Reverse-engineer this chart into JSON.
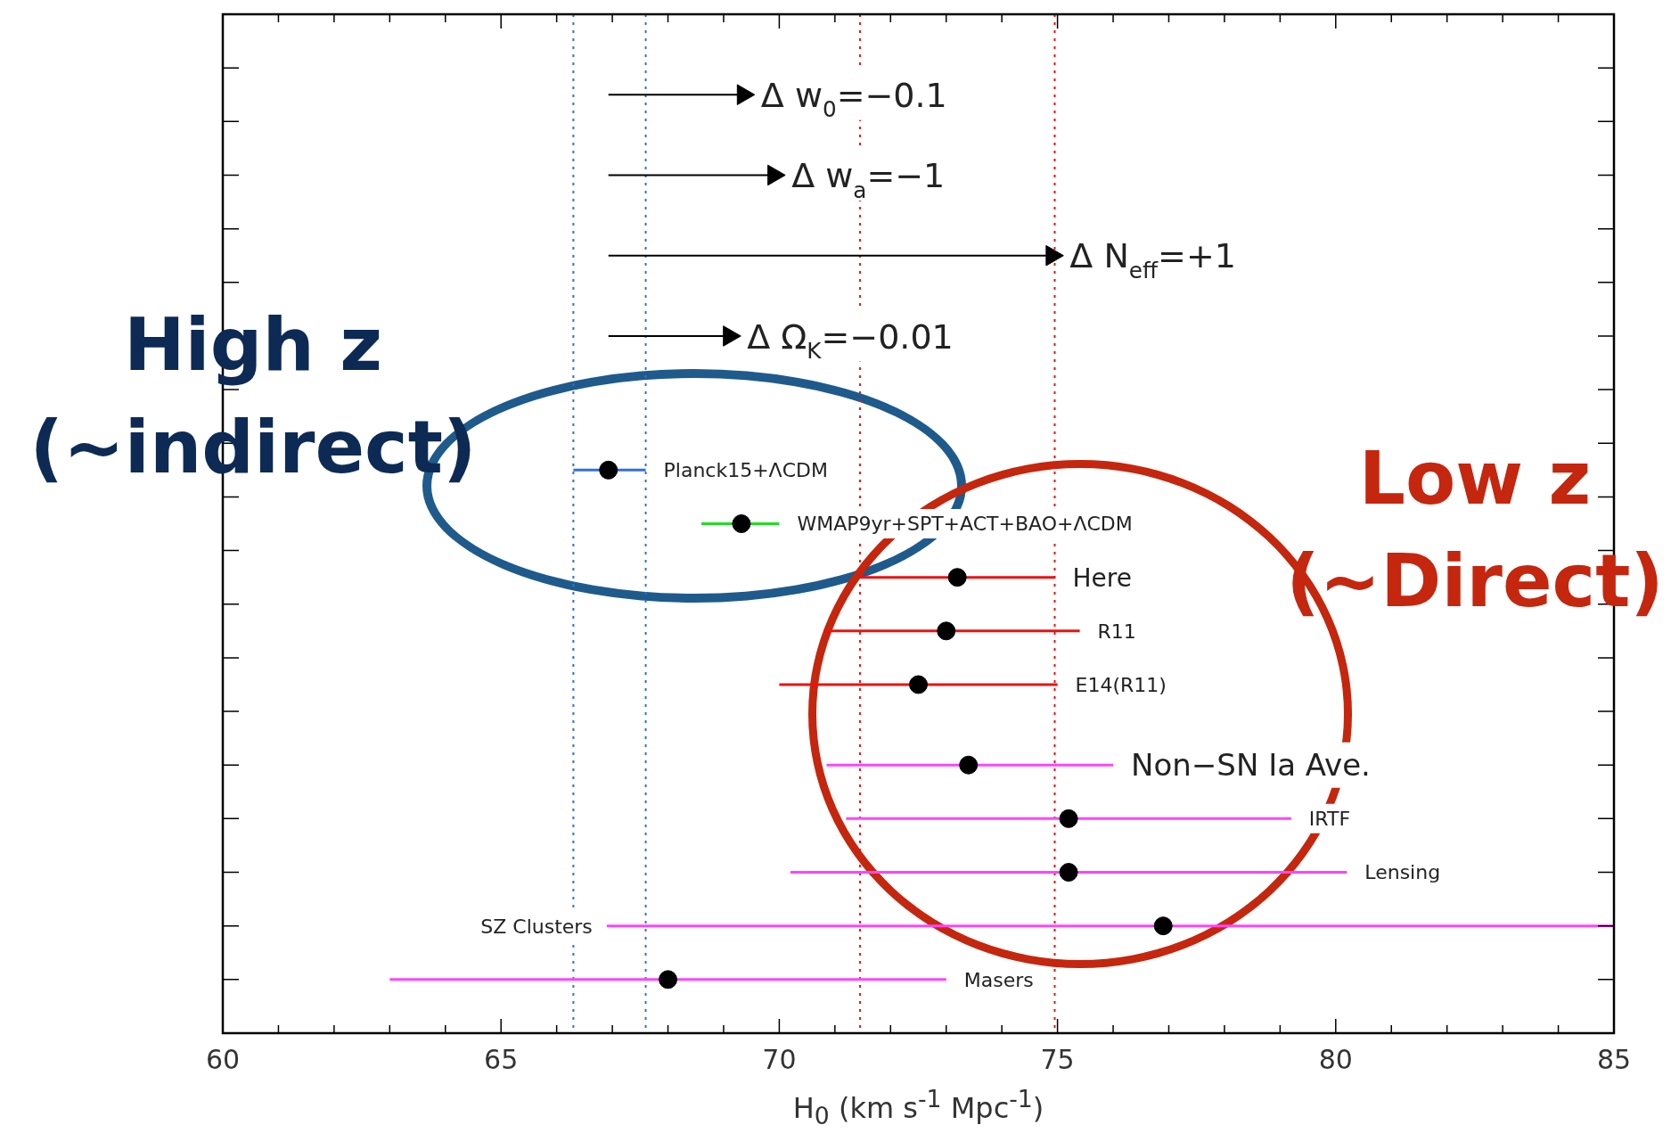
{
  "chart_data": {
    "type": "scatter",
    "orientation": "horizontal",
    "xlabel": "H$_{0}$ (km s$^{-1}$ Mpc$^{-1}$)",
    "categories": [
      null,
      null,
      null,
      "Δ w$_{0}$=−0.1",
      null,
      null,
      "Δ w$_{a}$=−1",
      null,
      null,
      "Δ N$_{eff}$=+1",
      null,
      null,
      "Δ Ω$_{K}$=−0.01",
      null,
      null,
      null,
      null,
      "Planck15+ΛCDM",
      null,
      "WMAP9yr+SPT+ACT+BAO+ΛCDM",
      null,
      "Here",
      null,
      "R11",
      null,
      "E14(R11)",
      null,
      null,
      "Non−SN Ia Ave.",
      null,
      "IRTF",
      null,
      "Lensing",
      null,
      "SZ Clusters",
      null,
      "Masers",
      null,
      null
    ],
    "xlim": [
      60,
      85
    ],
    "xticks": [
      60,
      {
        "value": 61,
        "label": null
      },
      {
        "value": 62,
        "label": null
      },
      {
        "value": 63,
        "label": null
      },
      {
        "value": 64,
        "label": null
      },
      65,
      {
        "value": 66,
        "label": null
      },
      {
        "value": 67,
        "label": null
      },
      {
        "value": 68,
        "label": null
      },
      {
        "value": 69,
        "label": null
      },
      70,
      {
        "value": 71,
        "label": null
      },
      {
        "value": 72,
        "label": null
      },
      {
        "value": 73,
        "label": null
      },
      {
        "value": 74,
        "label": null
      },
      75,
      {
        "value": 76,
        "label": null
      },
      {
        "value": 77,
        "label": null
      },
      {
        "value": 78,
        "label": null
      },
      {
        "value": 79,
        "label": null
      },
      80,
      {
        "value": 81,
        "label": null
      },
      {
        "value": 82,
        "label": null
      },
      {
        "value": 83,
        "label": null
      },
      {
        "value": 84,
        "label": null
      },
      85
    ],
    "grid": false,
    "legend": false,
    "series": [
      {
        "color": "#000000",
        "marker": "triangle",
        "values": [
          null,
          null,
          null,
          69.35,
          null,
          null,
          69.9,
          null,
          null,
          74.9,
          null,
          null,
          69.1,
          null,
          null,
          null,
          null,
          null,
          null,
          null,
          null,
          null,
          null,
          null,
          null,
          null,
          null,
          null,
          null,
          null,
          null,
          null,
          null,
          null,
          null,
          null,
          null,
          null,
          null
        ],
        "errors": [
          null,
          null,
          null,
          [
            66.93,
            69.35
          ],
          null,
          null,
          [
            66.93,
            69.9
          ],
          null,
          null,
          [
            66.93,
            74.9
          ],
          null,
          null,
          [
            66.93,
            69.1
          ],
          null,
          null,
          null,
          null,
          null,
          null,
          null,
          null,
          null,
          null,
          null,
          null,
          null,
          null,
          null,
          null,
          null,
          null,
          null,
          null,
          null,
          null,
          null,
          null,
          null,
          null
        ]
      },
      {
        "color": "#2f6fe0",
        "marker": "circle",
        "colors": [
          null,
          null,
          null,
          null,
          null,
          null,
          null,
          null,
          null,
          null,
          null,
          null,
          null,
          null,
          null,
          null,
          null,
          "#000000",
          null,
          null,
          null,
          null,
          null,
          null,
          null,
          null,
          null,
          null,
          null,
          null,
          null,
          null,
          null,
          null,
          null,
          null,
          null,
          null,
          null
        ],
        "values": [
          null,
          null,
          null,
          null,
          null,
          null,
          null,
          null,
          null,
          null,
          null,
          null,
          null,
          null,
          null,
          null,
          null,
          66.93,
          null,
          null,
          null,
          null,
          null,
          null,
          null,
          null,
          null,
          null,
          null,
          null,
          null,
          null,
          null,
          null,
          null,
          null,
          null,
          null,
          null
        ],
        "errors": [
          null,
          null,
          null,
          null,
          null,
          null,
          null,
          null,
          null,
          null,
          null,
          null,
          null,
          null,
          null,
          null,
          null,
          [
            66.3,
            67.6
          ],
          null,
          null,
          null,
          null,
          null,
          null,
          null,
          null,
          null,
          null,
          null,
          null,
          null,
          null,
          null,
          null,
          null,
          null,
          null,
          null,
          null
        ]
      },
      {
        "color": "#22dd22",
        "marker": "circle",
        "colors": [
          null,
          null,
          null,
          null,
          null,
          null,
          null,
          null,
          null,
          null,
          null,
          null,
          null,
          null,
          null,
          null,
          null,
          null,
          null,
          "#000000",
          null,
          null,
          null,
          null,
          null,
          null,
          null,
          null,
          null,
          null,
          null,
          null,
          null,
          null,
          null,
          null,
          null,
          null,
          null
        ],
        "values": [
          null,
          null,
          null,
          null,
          null,
          null,
          null,
          null,
          null,
          null,
          null,
          null,
          null,
          null,
          null,
          null,
          null,
          null,
          null,
          69.32,
          null,
          null,
          null,
          null,
          null,
          null,
          null,
          null,
          null,
          null,
          null,
          null,
          null,
          null,
          null,
          null,
          null,
          null,
          null
        ],
        "errors": [
          null,
          null,
          null,
          null,
          null,
          null,
          null,
          null,
          null,
          null,
          null,
          null,
          null,
          null,
          null,
          null,
          null,
          null,
          null,
          [
            68.6,
            70.0
          ],
          null,
          null,
          null,
          null,
          null,
          null,
          null,
          null,
          null,
          null,
          null,
          null,
          null,
          null,
          null,
          null,
          null,
          null,
          null
        ]
      },
      {
        "color": "#ee1111",
        "marker": "circle",
        "colors": [
          null,
          null,
          null,
          null,
          null,
          null,
          null,
          null,
          null,
          null,
          null,
          null,
          null,
          null,
          null,
          null,
          null,
          null,
          null,
          null,
          null,
          "#000000",
          null,
          "#000000",
          null,
          "#000000",
          null,
          null,
          null,
          null,
          null,
          null,
          null,
          null,
          null,
          null,
          null,
          null,
          null
        ],
        "values": [
          null,
          null,
          null,
          null,
          null,
          null,
          null,
          null,
          null,
          null,
          null,
          null,
          null,
          null,
          null,
          null,
          null,
          null,
          null,
          null,
          null,
          73.2,
          null,
          73.0,
          null,
          72.5,
          null,
          null,
          null,
          null,
          null,
          null,
          null,
          null,
          null,
          null,
          null,
          null,
          null
        ],
        "errors": [
          null,
          null,
          null,
          null,
          null,
          null,
          null,
          null,
          null,
          null,
          null,
          null,
          null,
          null,
          null,
          null,
          null,
          null,
          null,
          null,
          null,
          [
            71.45,
            74.95
          ],
          null,
          [
            70.8,
            75.4
          ],
          null,
          [
            70.0,
            75.0
          ],
          null,
          null,
          null,
          null,
          null,
          null,
          null,
          null,
          null,
          null,
          null,
          null,
          null
        ]
      },
      {
        "color": "#ff44ff",
        "marker": "circle",
        "colors": [
          null,
          null,
          null,
          null,
          null,
          null,
          null,
          null,
          null,
          null,
          null,
          null,
          null,
          null,
          null,
          null,
          null,
          null,
          null,
          null,
          null,
          null,
          null,
          null,
          null,
          null,
          null,
          null,
          "#000000",
          null,
          "#000000",
          null,
          "#000000",
          null,
          "#000000",
          null,
          "#000000",
          null,
          null
        ],
        "values": [
          null,
          null,
          null,
          null,
          null,
          null,
          null,
          null,
          null,
          null,
          null,
          null,
          null,
          null,
          null,
          null,
          null,
          null,
          null,
          null,
          null,
          null,
          null,
          null,
          null,
          null,
          null,
          null,
          73.4,
          null,
          75.2,
          null,
          75.2,
          null,
          76.9,
          null,
          68.0,
          null,
          null
        ],
        "errors": [
          null,
          null,
          null,
          null,
          null,
          null,
          null,
          null,
          null,
          null,
          null,
          null,
          null,
          null,
          null,
          null,
          null,
          null,
          null,
          null,
          null,
          null,
          null,
          null,
          null,
          null,
          null,
          null,
          [
            70.85,
            76.0
          ],
          null,
          [
            71.2,
            79.2
          ],
          null,
          [
            70.2,
            80.2
          ],
          null,
          [
            66.9,
            85.0
          ],
          null,
          [
            63.0,
            73.0
          ],
          null,
          null
        ]
      }
    ],
    "ref_lines": [
      {
        "axis": "x",
        "value": 66.3,
        "color": "#2f6fe0",
        "line_style": "dotted"
      },
      {
        "axis": "x",
        "value": 67.6,
        "color": "#2f6fe0",
        "line_style": "dotted"
      },
      {
        "axis": "x",
        "value": 71.45,
        "color": "#ee1111",
        "line_style": "dotted"
      },
      {
        "axis": "x",
        "value": 74.95,
        "color": "#ee1111",
        "line_style": "dotted"
      }
    ],
    "annotations": [
      "High z\n(~indirect)",
      "Low z\n(~Direct)"
    ]
  }
}
